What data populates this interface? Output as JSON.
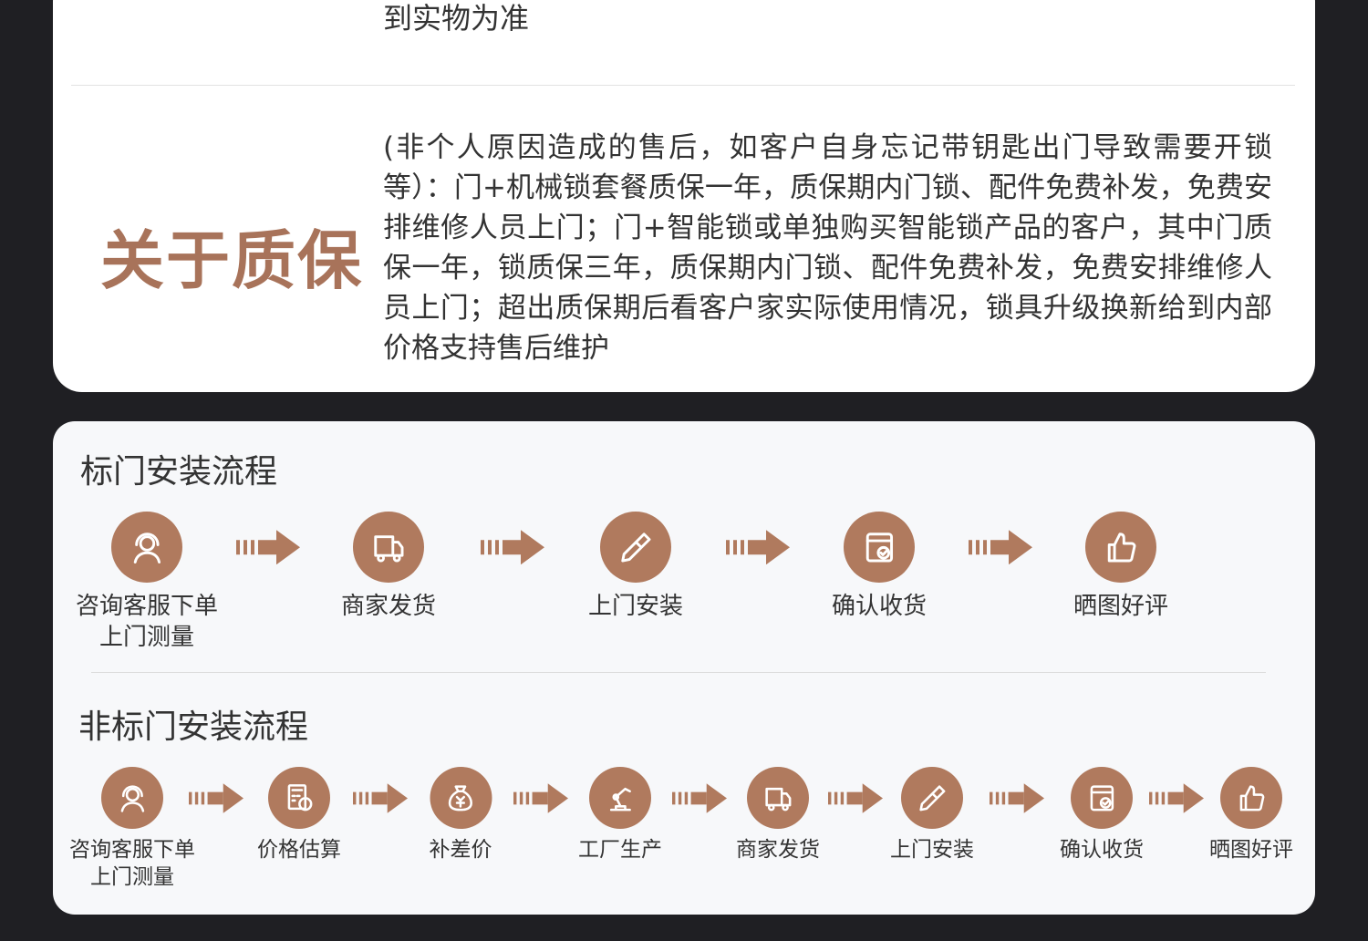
{
  "warranty": {
    "previous_text_tail": "到实物为准",
    "title": "关于质保",
    "text": "(非个人原因造成的售后，如客户自身忘记带钥匙出门导致需要开锁等）：门+机械锁套餐质保一年，质保期内门锁、配件免费补发，免费安排维修人员上门；门+智能锁或单独购买智能锁产品的客户，其中门质保一年，锁质保三年，质保期内门锁、配件免费补发，免费安排维修人员上门；超出质保期后看客户家实际使用情况，锁具升级换新给到内部价格支持售后维护"
  },
  "accent_color": "#b07a5e",
  "standard_flow": {
    "title": "标门安装流程",
    "steps": [
      {
        "label": "咨询客服下单\n上门测量",
        "icon": "customer-service-icon"
      },
      {
        "label": "商家发货",
        "icon": "truck-icon"
      },
      {
        "label": "上门安装",
        "icon": "screwdriver-icon"
      },
      {
        "label": "确认收货",
        "icon": "receipt-check-icon"
      },
      {
        "label": "晒图好评",
        "icon": "thumbs-up-icon"
      }
    ]
  },
  "custom_flow": {
    "title": "非标门安装流程",
    "steps": [
      {
        "label": "咨询客服下单\n上门测量",
        "icon": "customer-service-icon"
      },
      {
        "label": "价格估算",
        "icon": "calculator-icon"
      },
      {
        "label": "补差价",
        "icon": "money-bag-icon"
      },
      {
        "label": "工厂生产",
        "icon": "robot-arm-icon"
      },
      {
        "label": "商家发货",
        "icon": "truck-icon"
      },
      {
        "label": "上门安装",
        "icon": "screwdriver-icon"
      },
      {
        "label": "确认收货",
        "icon": "receipt-check-icon"
      },
      {
        "label": "晒图好评",
        "icon": "thumbs-up-icon"
      }
    ]
  }
}
